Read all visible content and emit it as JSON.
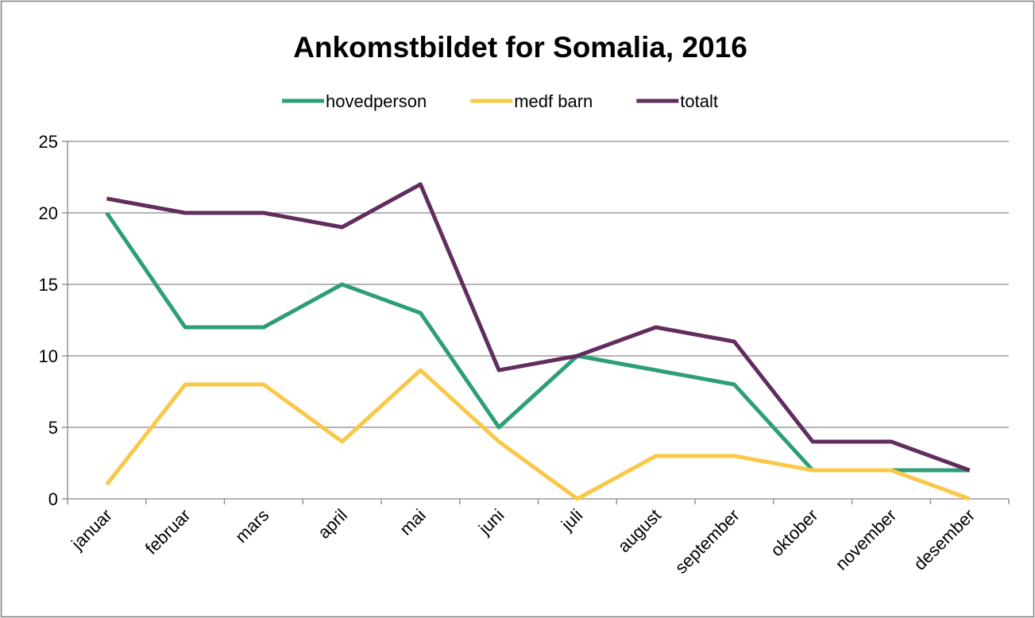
{
  "chart_data": {
    "type": "line",
    "title": "Ankomstbildet for Somalia, 2016",
    "categories": [
      "januar",
      "februar",
      "mars",
      "april",
      "mai",
      "juni",
      "juli",
      "august",
      "september",
      "oktober",
      "november",
      "desember"
    ],
    "series": [
      {
        "name": "hovedperson",
        "color": "#2e9e78",
        "values": [
          20,
          12,
          12,
          15,
          13,
          5,
          10,
          9,
          8,
          2,
          2,
          2
        ]
      },
      {
        "name": "medf barn",
        "color": "#f9c846",
        "values": [
          1,
          8,
          8,
          4,
          9,
          4,
          0,
          3,
          3,
          2,
          2,
          0
        ]
      },
      {
        "name": "totalt",
        "color": "#612d5e",
        "values": [
          21,
          20,
          20,
          19,
          22,
          9,
          10,
          12,
          11,
          4,
          4,
          2
        ]
      }
    ],
    "ylim": [
      0,
      25
    ],
    "yticks": [
      0,
      5,
      10,
      15,
      20,
      25
    ],
    "grid": true,
    "legend": "top"
  }
}
